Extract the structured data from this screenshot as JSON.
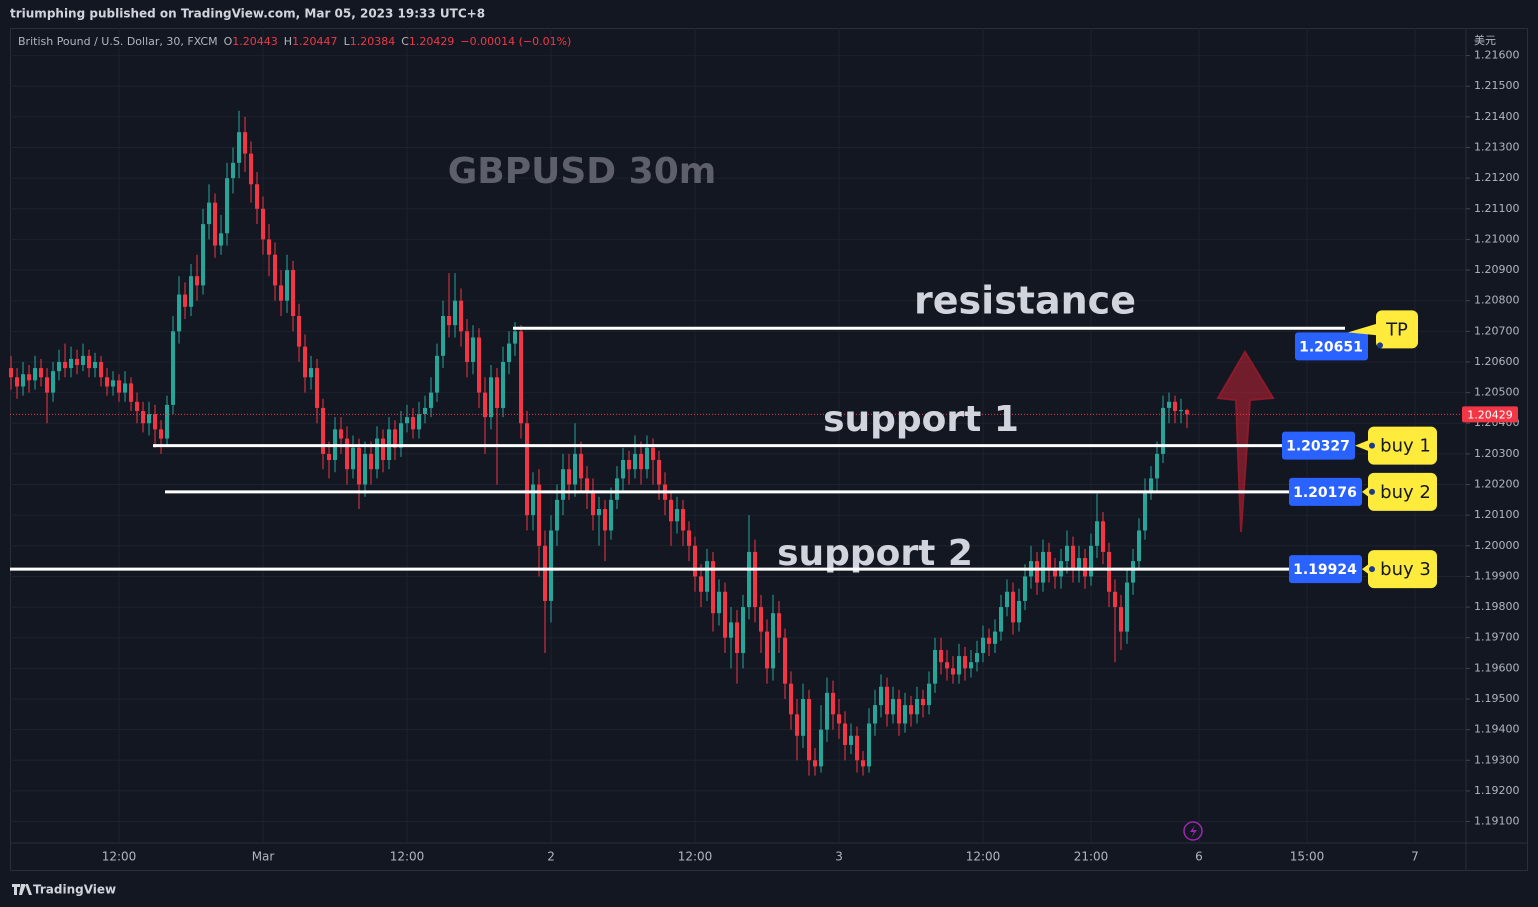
{
  "chart_data": {
    "type": "candlestick",
    "published": "triumphing published on TradingView.com, Mar 05, 2023 19:33 UTC+8",
    "symbol": "British Pound / U.S. Dollar, 30, FXCM",
    "ohlc_labels": [
      "O",
      "H",
      "L",
      "C"
    ],
    "change": "−0.00014 (−0.01%)",
    "currency": "美元",
    "title": "GBPUSD 30m",
    "brand": "TradingView",
    "up_color": "#26a69a",
    "down_color": "#f23645",
    "grid": true,
    "open": [
      1.2058,
      1.2055,
      1.2052,
      1.2056,
      1.2054,
      1.2058,
      1.2055,
      1.205,
      1.2057,
      1.206,
      1.2058,
      1.2061,
      1.2059,
      1.2062,
      1.2058,
      1.206,
      1.2055,
      1.2052,
      1.2054,
      1.205,
      1.2053,
      1.2047,
      1.2044,
      1.204,
      1.2043,
      1.2038,
      1.2035,
      1.2046,
      1.207,
      1.2082,
      1.2078,
      1.2088,
      1.2085,
      1.2105,
      1.2112,
      1.2098,
      1.2102,
      1.212,
      1.2125,
      1.2135,
      1.2128,
      1.2118,
      1.211,
      1.21,
      1.2095,
      1.2085,
      1.208,
      1.209,
      1.2075,
      1.2065,
      1.2055,
      1.2058,
      1.2045,
      1.203,
      1.2028,
      1.2038,
      1.2035,
      1.2025,
      1.2032,
      1.202,
      1.203,
      1.2025,
      1.2035,
      1.2028,
      1.2038,
      1.2032,
      1.204,
      1.2042,
      1.2038,
      1.2043,
      1.2045,
      1.205,
      1.2062,
      1.2075,
      1.2072,
      1.208,
      1.207,
      1.206,
      1.2068,
      1.205,
      1.2042,
      1.2055,
      1.2045,
      1.206,
      1.2066,
      1.207,
      1.204,
      1.201,
      1.202,
      1.2,
      1.1982,
      1.2005,
      1.2015,
      1.2025,
      1.202,
      1.203,
      1.2022,
      1.2018,
      1.201,
      1.2012,
      1.2005,
      1.2015,
      1.2022,
      1.2028,
      1.2025,
      1.203,
      1.2025,
      1.2032,
      1.2028,
      1.202,
      1.2015,
      1.2008,
      1.2012,
      1.2005,
      1.2,
      1.199,
      1.1985,
      1.1995,
      1.1978,
      1.1985,
      1.197,
      1.1975,
      1.1965,
      1.198,
      1.1998,
      1.198,
      1.1972,
      1.196,
      1.1978,
      1.197,
      1.1955,
      1.1945,
      1.1938,
      1.195,
      1.193,
      1.1928,
      1.194,
      1.1952,
      1.1945,
      1.1942,
      1.1935,
      1.1938,
      1.193,
      1.1928,
      1.1942,
      1.1948,
      1.1954,
      1.1945,
      1.195,
      1.1942,
      1.1948,
      1.1945,
      1.195,
      1.1948,
      1.1955,
      1.1966,
      1.1962,
      1.196,
      1.1958,
      1.1964,
      1.196,
      1.1962,
      1.1965,
      1.197,
      1.1968,
      1.1972,
      1.198,
      1.1985,
      1.1975,
      1.1982,
      1.199,
      1.1995,
      1.1988,
      1.1998,
      1.1992,
      1.199,
      1.1995,
      1.2,
      1.1992,
      1.1996,
      1.199,
      1.2,
      1.2008,
      1.1998,
      1.1985,
      1.198,
      1.1972,
      1.1988,
      1.1995,
      1.2005,
      1.2018,
      1.2022,
      1.203,
      1.2045,
      1.2047,
      1.2044,
      1.20443
    ],
    "high": [
      1.2062,
      1.2058,
      1.206,
      1.2059,
      1.2062,
      1.2061,
      1.2058,
      1.206,
      1.2064,
      1.2066,
      1.2065,
      1.2064,
      1.2066,
      1.2064,
      1.2063,
      1.2062,
      1.2058,
      1.2057,
      1.2056,
      1.2057,
      1.2055,
      1.205,
      1.2047,
      1.2047,
      1.2046,
      1.2041,
      1.2049,
      1.2075,
      1.2088,
      1.2086,
      1.2092,
      1.2095,
      1.211,
      1.2118,
      1.2115,
      1.2108,
      1.2125,
      1.213,
      1.2142,
      1.214,
      1.2132,
      1.2122,
      1.2114,
      1.2105,
      1.2099,
      1.209,
      1.2095,
      1.2093,
      1.2079,
      1.2069,
      1.2062,
      1.2061,
      1.2048,
      1.2034,
      1.2042,
      1.2042,
      1.2039,
      1.2036,
      1.2035,
      1.2034,
      1.2034,
      1.2039,
      1.2038,
      1.2042,
      1.2041,
      1.2044,
      1.2046,
      1.2045,
      1.2047,
      1.2049,
      1.2055,
      1.2066,
      1.208,
      1.2089,
      1.2089,
      1.2084,
      1.2074,
      1.2072,
      1.2071,
      1.2055,
      1.2059,
      1.2058,
      1.2065,
      1.207,
      1.2073,
      1.2072,
      1.2044,
      1.2024,
      1.2025,
      1.2005,
      1.201,
      1.202,
      1.203,
      1.203,
      1.204,
      1.2034,
      1.2026,
      1.2022,
      1.2016,
      1.2015,
      1.2019,
      1.2026,
      1.2032,
      1.2031,
      1.2036,
      1.2034,
      1.2036,
      1.2035,
      1.2031,
      1.2024,
      1.2018,
      1.2016,
      1.2015,
      1.2008,
      1.2003,
      1.1994,
      1.1999,
      1.1998,
      1.1989,
      1.1988,
      1.198,
      1.1979,
      1.1984,
      1.201,
      1.2002,
      1.1984,
      1.1976,
      1.1984,
      1.1982,
      1.1973,
      1.1959,
      1.195,
      1.1955,
      1.1953,
      1.1934,
      1.1948,
      1.1957,
      1.1956,
      1.195,
      1.1946,
      1.1942,
      1.1941,
      1.1933,
      1.1947,
      1.1953,
      1.1958,
      1.1957,
      1.1954,
      1.1953,
      1.1952,
      1.1951,
      1.1954,
      1.1953,
      1.1959,
      1.197,
      1.197,
      1.1966,
      1.1964,
      1.1968,
      1.1967,
      1.1966,
      1.1969,
      1.1974,
      1.1973,
      1.1976,
      1.1984,
      1.1989,
      1.1988,
      1.1986,
      1.1994,
      1.2,
      1.1998,
      1.2002,
      1.2001,
      1.1996,
      1.1999,
      1.2005,
      1.2003,
      1.2,
      1.1999,
      1.2004,
      1.2017,
      1.2011,
      1.2001,
      1.1989,
      1.1984,
      1.1992,
      1.1999,
      1.2009,
      1.2022,
      1.2026,
      1.2034,
      1.2049,
      1.205,
      1.2049,
      1.2048,
      1.20447
    ],
    "low": [
      1.2051,
      1.2048,
      1.2049,
      1.205,
      1.2051,
      1.2052,
      1.204,
      1.2047,
      1.2054,
      1.2055,
      1.2055,
      1.2056,
      1.2057,
      1.2055,
      1.2055,
      1.2052,
      1.2049,
      1.2049,
      1.2047,
      1.2047,
      1.2044,
      1.204,
      1.2037,
      1.2036,
      1.2032,
      1.203,
      1.2033,
      1.2043,
      1.2066,
      1.2074,
      1.2075,
      1.208,
      1.2082,
      1.21,
      1.2094,
      1.2095,
      1.2098,
      1.2115,
      1.212,
      1.2122,
      1.2112,
      1.2105,
      1.2095,
      1.2088,
      1.208,
      1.2075,
      1.2076,
      1.207,
      1.206,
      1.205,
      1.2051,
      1.204,
      1.2025,
      1.2022,
      1.2024,
      1.203,
      1.202,
      1.2022,
      1.2012,
      1.2016,
      1.202,
      1.2022,
      1.2024,
      1.2025,
      1.2028,
      1.2029,
      1.2037,
      1.2035,
      1.2035,
      1.204,
      1.2042,
      1.2047,
      1.2058,
      1.2068,
      1.2068,
      1.2065,
      1.2055,
      1.2056,
      1.2045,
      1.203,
      1.2038,
      1.202,
      1.2042,
      1.2056,
      1.2062,
      1.2035,
      1.2005,
      1.2005,
      1.199,
      1.1965,
      1.1975,
      1.2,
      1.201,
      1.2015,
      1.2016,
      1.2018,
      1.2012,
      1.2005,
      1.2,
      1.1995,
      1.2002,
      1.2012,
      1.2018,
      1.202,
      1.2022,
      1.202,
      1.2022,
      1.202,
      1.2015,
      1.201,
      1.2,
      1.2004,
      1.2,
      1.1995,
      1.1985,
      1.198,
      1.1982,
      1.1972,
      1.1974,
      1.1965,
      1.196,
      1.1955,
      1.196,
      1.1976,
      1.1975,
      1.1965,
      1.1955,
      1.1956,
      1.1965,
      1.195,
      1.194,
      1.193,
      1.1934,
      1.1925,
      1.1925,
      1.1926,
      1.1936,
      1.194,
      1.1937,
      1.193,
      1.1932,
      1.1926,
      1.1925,
      1.1926,
      1.1938,
      1.1944,
      1.1941,
      1.1942,
      1.1938,
      1.1939,
      1.1941,
      1.1942,
      1.1944,
      1.1945,
      1.1952,
      1.1958,
      1.1956,
      1.1955,
      1.1955,
      1.1956,
      1.1957,
      1.1959,
      1.1962,
      1.1964,
      1.1965,
      1.1969,
      1.1977,
      1.1971,
      1.1972,
      1.1979,
      1.1986,
      1.1984,
      1.1985,
      1.1988,
      1.1986,
      1.1986,
      1.1991,
      1.1988,
      1.1988,
      1.1986,
      1.1987,
      1.1996,
      1.1994,
      1.198,
      1.1962,
      1.1966,
      1.1968,
      1.1984,
      1.1992,
      1.2002,
      1.2015,
      1.2018,
      1.2027,
      1.204,
      1.204,
      1.204,
      1.20384
    ],
    "close": [
      1.2055,
      1.2052,
      1.2056,
      1.2054,
      1.2058,
      1.2055,
      1.205,
      1.2057,
      1.206,
      1.2058,
      1.2061,
      1.2059,
      1.2062,
      1.2058,
      1.206,
      1.2055,
      1.2052,
      1.2054,
      1.205,
      1.2053,
      1.2047,
      1.2044,
      1.204,
      1.2043,
      1.2038,
      1.2035,
      1.2046,
      1.207,
      1.2082,
      1.2078,
      1.2088,
      1.2085,
      1.2105,
      1.2112,
      1.2098,
      1.2102,
      1.212,
      1.2125,
      1.2135,
      1.2128,
      1.2118,
      1.211,
      1.21,
      1.2095,
      1.2085,
      1.208,
      1.209,
      1.2075,
      1.2065,
      1.2055,
      1.2058,
      1.2045,
      1.203,
      1.2028,
      1.2038,
      1.2035,
      1.2025,
      1.2032,
      1.202,
      1.203,
      1.2025,
      1.2035,
      1.2028,
      1.2038,
      1.2032,
      1.204,
      1.2042,
      1.2038,
      1.2043,
      1.2045,
      1.205,
      1.2062,
      1.2075,
      1.2072,
      1.208,
      1.207,
      1.206,
      1.2068,
      1.205,
      1.2042,
      1.2055,
      1.2045,
      1.206,
      1.2066,
      1.207,
      1.204,
      1.201,
      1.202,
      1.2,
      1.1982,
      1.2005,
      1.2015,
      1.2025,
      1.202,
      1.203,
      1.2022,
      1.2018,
      1.201,
      1.2012,
      1.2005,
      1.2015,
      1.2022,
      1.2028,
      1.2025,
      1.203,
      1.2025,
      1.2032,
      1.2028,
      1.202,
      1.2015,
      1.2008,
      1.2012,
      1.2005,
      1.2,
      1.199,
      1.1985,
      1.1995,
      1.1978,
      1.1985,
      1.197,
      1.1975,
      1.1965,
      1.198,
      1.1998,
      1.198,
      1.1972,
      1.196,
      1.1978,
      1.197,
      1.1955,
      1.1945,
      1.1938,
      1.195,
      1.193,
      1.1928,
      1.194,
      1.1952,
      1.1945,
      1.1942,
      1.1935,
      1.1938,
      1.193,
      1.1928,
      1.1942,
      1.1948,
      1.1954,
      1.1945,
      1.195,
      1.1942,
      1.1948,
      1.1945,
      1.195,
      1.1948,
      1.1955,
      1.1966,
      1.1962,
      1.196,
      1.1958,
      1.1964,
      1.196,
      1.1962,
      1.1965,
      1.197,
      1.1968,
      1.1972,
      1.198,
      1.1985,
      1.1975,
      1.1982,
      1.199,
      1.1995,
      1.1988,
      1.1998,
      1.1992,
      1.199,
      1.1995,
      1.2,
      1.1992,
      1.1996,
      1.199,
      1.2,
      1.2008,
      1.1998,
      1.1985,
      1.198,
      1.1972,
      1.1988,
      1.1995,
      1.2005,
      1.2018,
      1.2022,
      1.203,
      1.2045,
      1.2047,
      1.2044,
      1.20443,
      1.20429
    ],
    "xlim": [
      -0.17,
      242.5
    ],
    "xticks": [
      {
        "value": 18,
        "label": "12:00"
      },
      {
        "value": 42,
        "label": "Mar"
      },
      {
        "value": 66,
        "label": "12:00"
      },
      {
        "value": 90,
        "label": "2"
      },
      {
        "value": 114,
        "label": "12:00"
      },
      {
        "value": 138,
        "label": "3"
      },
      {
        "value": 162,
        "label": "12:00"
      },
      {
        "value": 180,
        "label": "21:00"
      },
      {
        "value": 198,
        "label": "6"
      },
      {
        "value": 216,
        "label": "15:00"
      },
      {
        "value": 234,
        "label": "7"
      }
    ],
    "ylim": [
      1.1903,
      1.2169
    ],
    "yticks": [
      {
        "value": 1.216,
        "label": "1.21600"
      },
      {
        "value": 1.215,
        "label": "1.21500"
      },
      {
        "value": 1.214,
        "label": "1.21400"
      },
      {
        "value": 1.213,
        "label": "1.21300"
      },
      {
        "value": 1.212,
        "label": "1.21200"
      },
      {
        "value": 1.211,
        "label": "1.21100"
      },
      {
        "value": 1.21,
        "label": "1.21000"
      },
      {
        "value": 1.209,
        "label": "1.20900"
      },
      {
        "value": 1.208,
        "label": "1.20800"
      },
      {
        "value": 1.207,
        "label": "1.20700"
      },
      {
        "value": 1.206,
        "label": "1.20600"
      },
      {
        "value": 1.205,
        "label": "1.20500"
      },
      {
        "value": 1.204,
        "label": "1.20400"
      },
      {
        "value": 1.203,
        "label": "1.20300"
      },
      {
        "value": 1.202,
        "label": "1.20200"
      },
      {
        "value": 1.201,
        "label": "1.20100"
      },
      {
        "value": 1.2,
        "label": "1.20000"
      },
      {
        "value": 1.199,
        "label": "1.19900"
      },
      {
        "value": 1.198,
        "label": "1.19800"
      },
      {
        "value": 1.197,
        "label": "1.19700"
      },
      {
        "value": 1.196,
        "label": "1.19600"
      },
      {
        "value": 1.195,
        "label": "1.19500"
      },
      {
        "value": 1.194,
        "label": "1.19400"
      },
      {
        "value": 1.193,
        "label": "1.19300"
      },
      {
        "value": 1.192,
        "label": "1.19200"
      },
      {
        "value": 1.191,
        "label": "1.19100"
      }
    ],
    "resistance": {
      "label": "resistance",
      "value": 1.2071
    },
    "support_labels": [
      "support 1",
      "support 2"
    ],
    "levels": [
      {
        "label": "TP",
        "value": 1.20651
      },
      {
        "label": "buy 1",
        "value": 1.20327
      },
      {
        "label": "buy 2",
        "value": 1.20176
      },
      {
        "label": "buy 3",
        "value": 1.19924
      }
    ]
  }
}
